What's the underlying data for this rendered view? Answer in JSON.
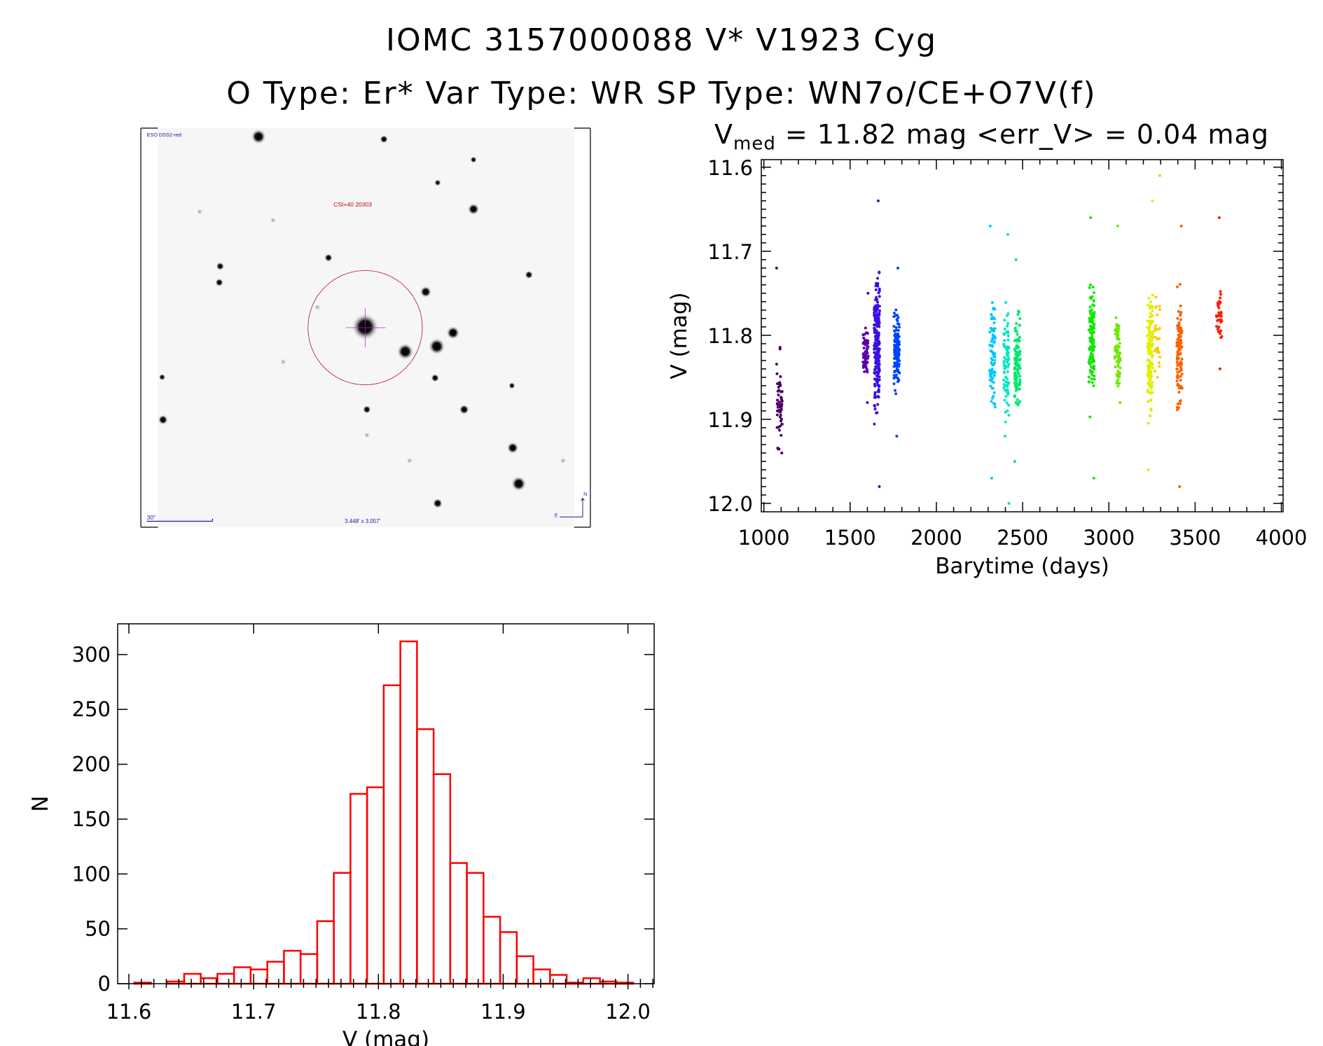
{
  "title": {
    "line1": "IOMC 3157000088    V* V1923 Cyg",
    "line2": "O Type: Er*   Var Type: WR   SP Type: WN7o/CE+O7V(f)"
  },
  "finder_image": {
    "survey_label": "ESO DSS2-red",
    "target_label": "CSI+40 20303",
    "scale_bar_label": "30\"",
    "field_size_label": "3.448' x 3.057'",
    "north_label": "N",
    "east_label": "E"
  },
  "chart_data": [
    {
      "type": "scatter",
      "title_prefix": "V",
      "title_sub": "med",
      "title_rest": " = 11.82 mag <err_V> = 0.04 mag",
      "xlabel": "Barytime (days)",
      "ylabel": "V (mag)",
      "xlim": [
        985,
        4010
      ],
      "ylim": [
        12.01,
        11.591
      ],
      "xticks": [
        1000,
        1500,
        2000,
        2500,
        3000,
        3500,
        4000
      ],
      "yticks": [
        "11.6",
        "11.7",
        "11.8",
        "11.9",
        "12.0"
      ],
      "groups": [
        {
          "x": 1090,
          "color": "#4a0060",
          "median": 11.88,
          "min": 11.72,
          "max": 11.94,
          "n": 60
        },
        {
          "x": 1590,
          "color": "#5a00a8",
          "median": 11.82,
          "min": 11.75,
          "max": 11.88,
          "n": 60
        },
        {
          "x": 1655,
          "color": "#3a10e0",
          "median": 11.81,
          "min": 11.64,
          "max": 11.98,
          "n": 220
        },
        {
          "x": 1770,
          "color": "#0044ff",
          "median": 11.82,
          "min": 11.72,
          "max": 11.92,
          "n": 120
        },
        {
          "x": 2325,
          "color": "#00c8ff",
          "median": 11.82,
          "min": 11.67,
          "max": 11.97,
          "n": 80
        },
        {
          "x": 2405,
          "color": "#00e8c0",
          "median": 11.84,
          "min": 11.68,
          "max": 12.0,
          "n": 80
        },
        {
          "x": 2470,
          "color": "#00e870",
          "median": 11.83,
          "min": 11.71,
          "max": 11.95,
          "n": 110
        },
        {
          "x": 2900,
          "color": "#10e800",
          "median": 11.81,
          "min": 11.66,
          "max": 11.97,
          "n": 130
        },
        {
          "x": 3050,
          "color": "#70e800",
          "median": 11.82,
          "min": 11.67,
          "max": 11.88,
          "n": 70
        },
        {
          "x": 3240,
          "color": "#e0f000",
          "median": 11.82,
          "min": 11.64,
          "max": 11.96,
          "n": 150
        },
        {
          "x": 3280,
          "color": "#ffc800",
          "median": 11.8,
          "min": 11.61,
          "max": 11.85,
          "n": 30
        },
        {
          "x": 3410,
          "color": "#ff6000",
          "median": 11.82,
          "min": 11.67,
          "max": 11.98,
          "n": 110
        },
        {
          "x": 3640,
          "color": "#ff1c00",
          "median": 11.78,
          "min": 11.66,
          "max": 11.84,
          "n": 40
        }
      ]
    },
    {
      "type": "bar",
      "subtype": "histogram",
      "xlabel": "V (mag)",
      "ylabel": "N",
      "xlim": [
        11.591,
        12.021
      ],
      "ylim": [
        0,
        328
      ],
      "xticks": [
        "11.6",
        "11.7",
        "11.8",
        "11.9",
        "12.0"
      ],
      "yticks": [
        "0",
        "50",
        "100",
        "150",
        "200",
        "250",
        "300"
      ],
      "bin_start": 11.6043,
      "bin_width": 0.01333,
      "color": "#ff0000",
      "counts": [
        1,
        0,
        2,
        9,
        5,
        9,
        15,
        13,
        20,
        30,
        27,
        57,
        101,
        173,
        179,
        272,
        312,
        232,
        191,
        110,
        101,
        61,
        47,
        25,
        13,
        8,
        1,
        5,
        2,
        1
      ]
    }
  ]
}
